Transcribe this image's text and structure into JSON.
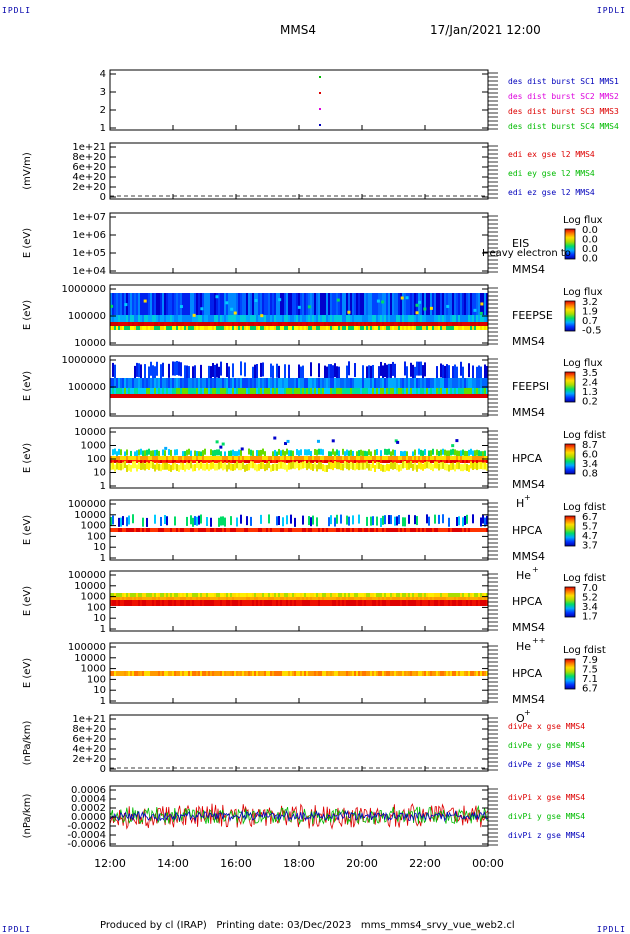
{
  "header": {
    "corner_label": "IPDLI",
    "title": "MMS4",
    "datetime": "17/Jan/2021 12:00"
  },
  "footer": {
    "text": "Produced by cl (IRAP)   Printing date: 03/Dec/2023   mms_mms4_srvy_vue_web2.cl"
  },
  "time_axis": {
    "tick_labels": [
      "12:00",
      "14:00",
      "16:00",
      "18:00",
      "20:00",
      "22:00",
      "00:00"
    ]
  },
  "colors": {
    "red": "#dd0000",
    "green": "#00bb00",
    "blue": "#0000bb",
    "magenta": "#dd00dd"
  },
  "panels": [
    {
      "id": "burst",
      "ylabel": "",
      "yticks": [
        "4",
        "3",
        "2",
        "1"
      ],
      "legend": [
        {
          "text": "des dist burst SC1 MMS1",
          "color": "#0000bb"
        },
        {
          "text": "des dist burst SC2 MMS2",
          "color": "#dd00dd"
        },
        {
          "text": "des dist burst SC3 MMS3",
          "color": "#dd0000"
        },
        {
          "text": "des dist burst SC4 MMS4",
          "color": "#00bb00"
        }
      ]
    },
    {
      "id": "edi",
      "ylabel": "(mV/m)",
      "yticks": [
        "1e+21",
        "8e+20",
        "6e+20",
        "4e+20",
        "2e+20",
        "0"
      ],
      "legend": [
        {
          "text": "edi ex gse l2 MMS4",
          "color": "#dd0000"
        },
        {
          "text": "edi ey gse l2 MMS4",
          "color": "#00bb00"
        },
        {
          "text": "edi ez gse l2 MMS4",
          "color": "#0000bb"
        }
      ]
    },
    {
      "id": "eis",
      "ylabel": "E (eV)",
      "yticks": [
        "1e+07",
        "1e+06",
        "1e+05",
        "1e+04"
      ],
      "instrument": "EIS",
      "sc": "MMS4",
      "species": "",
      "overlay": "Heavy electron to",
      "cbar_title": "Log flux",
      "cbar_ticks": [
        "0.0",
        "0.0",
        "0.0",
        "0.0"
      ]
    },
    {
      "id": "feepse",
      "ylabel": "E (eV)",
      "yticks": [
        "1000000",
        "100000",
        "10000"
      ],
      "instrument": "FEEPSE",
      "sc": "MMS4",
      "species": "",
      "cbar_title": "Log flux",
      "cbar_ticks": [
        "3.2",
        "1.9",
        "0.7",
        "-0.5"
      ]
    },
    {
      "id": "feepsi",
      "ylabel": "E (eV)",
      "yticks": [
        "1000000",
        "100000",
        "10000"
      ],
      "instrument": "FEEPSI",
      "sc": "MMS4",
      "species": "",
      "cbar_title": "Log flux",
      "cbar_ticks": [
        "3.5",
        "2.4",
        "1.3",
        "0.2"
      ]
    },
    {
      "id": "hpca_h",
      "ylabel": "E (eV)",
      "yticks": [
        "10000",
        "1000",
        "100",
        "10",
        "1"
      ],
      "instrument": "HPCA",
      "sc": "MMS4",
      "species": "H",
      "species_sup": "+",
      "cbar_title": "Log fdist",
      "cbar_ticks": [
        "8.7",
        "6.0",
        "3.4",
        "0.8"
      ]
    },
    {
      "id": "hpca_he",
      "ylabel": "E (eV)",
      "yticks": [
        "100000",
        "10000",
        "1000",
        "100",
        "10",
        "1"
      ],
      "instrument": "HPCA",
      "sc": "MMS4",
      "species": "He",
      "species_sup": "+",
      "cbar_title": "Log fdist",
      "cbar_ticks": [
        "6.7",
        "5.7",
        "4.7",
        "3.7"
      ]
    },
    {
      "id": "hpca_he2",
      "ylabel": "E (eV)",
      "yticks": [
        "100000",
        "10000",
        "1000",
        "100",
        "10",
        "1"
      ],
      "instrument": "HPCA",
      "sc": "MMS4",
      "species": "He",
      "species_sup": "++",
      "cbar_title": "Log fdist",
      "cbar_ticks": [
        "7.0",
        "5.2",
        "3.4",
        "1.7"
      ]
    },
    {
      "id": "hpca_o",
      "ylabel": "E (eV)",
      "yticks": [
        "100000",
        "10000",
        "1000",
        "100",
        "10",
        "1"
      ],
      "instrument": "HPCA",
      "sc": "MMS4",
      "species": "O",
      "species_sup": "+",
      "cbar_title": "Log fdist",
      "cbar_ticks": [
        "7.9",
        "7.5",
        "7.1",
        "6.7"
      ]
    },
    {
      "id": "divpe",
      "ylabel": "(nPa/km)",
      "yticks": [
        "1e+21",
        "8e+20",
        "6e+20",
        "4e+20",
        "2e+20",
        "0"
      ],
      "legend": [
        {
          "text": "divPe x gse MMS4",
          "color": "#dd0000"
        },
        {
          "text": "divPe y gse MMS4",
          "color": "#00bb00"
        },
        {
          "text": "divPe z gse MMS4",
          "color": "#0000bb"
        }
      ]
    },
    {
      "id": "divpi",
      "ylabel": "(nPa/km)",
      "yticks": [
        "0.0006",
        "0.0004",
        "0.0002",
        "0.0000",
        "-0.0002",
        "-0.0004",
        "-0.0006"
      ],
      "legend": [
        {
          "text": "divPi x gse MMS4",
          "color": "#dd0000"
        },
        {
          "text": "divPi y gse MMS4",
          "color": "#00bb00"
        },
        {
          "text": "divPi z gse MMS4",
          "color": "#0000bb"
        }
      ]
    }
  ],
  "chart_data": {
    "type": "heatmap",
    "x_range": [
      "12:00",
      "00:00"
    ],
    "panels": [
      {
        "id": "burst",
        "type": "scatter",
        "points": [
          {
            "time": "18:45",
            "sc": 1
          },
          {
            "time": "18:45",
            "sc": 2
          },
          {
            "time": "18:45",
            "sc": 3
          },
          {
            "time": "18:45",
            "sc": 4
          }
        ]
      },
      {
        "id": "edi",
        "type": "line",
        "ylim": [
          0,
          1e+21
        ],
        "values": "none plotted"
      },
      {
        "id": "eis",
        "type": "heatmap",
        "scale": "log",
        "ylim": [
          10000.0,
          10000000.0
        ]
      },
      {
        "id": "feepse",
        "type": "heatmap",
        "scale": "log",
        "ylim": [
          10000.0,
          1000000.0
        ],
        "band_eV": [
          35000,
          1000000
        ]
      },
      {
        "id": "feepsi",
        "type": "heatmap",
        "scale": "log",
        "ylim": [
          10000.0,
          1000000.0
        ],
        "band_eV": [
          50000,
          1000000
        ]
      },
      {
        "id": "hpca_h",
        "type": "heatmap",
        "scale": "log",
        "ylim": [
          1,
          30000
        ],
        "peak_eV": 300
      },
      {
        "id": "hpca_he",
        "type": "heatmap",
        "scale": "log",
        "ylim": [
          1,
          100000
        ],
        "peak_eV": 400
      },
      {
        "id": "hpca_he2",
        "type": "heatmap",
        "scale": "log",
        "ylim": [
          1,
          100000
        ],
        "peak_eV": 400
      },
      {
        "id": "hpca_o",
        "type": "heatmap",
        "scale": "log",
        "ylim": [
          1,
          100000
        ],
        "peak_eV": 300
      },
      {
        "id": "divpe",
        "type": "line",
        "ylim": [
          0,
          1e+21
        ],
        "values": "none plotted"
      },
      {
        "id": "divpi",
        "type": "line",
        "ylim": [
          -0.0006,
          0.0006
        ],
        "series": [
          {
            "name": "divPi x gse MMS4",
            "amplitude": 0.0004
          },
          {
            "name": "divPi y gse MMS4",
            "amplitude": 0.0003
          },
          {
            "name": "divPi z gse MMS4",
            "amplitude": 0.00015
          }
        ]
      }
    ]
  }
}
